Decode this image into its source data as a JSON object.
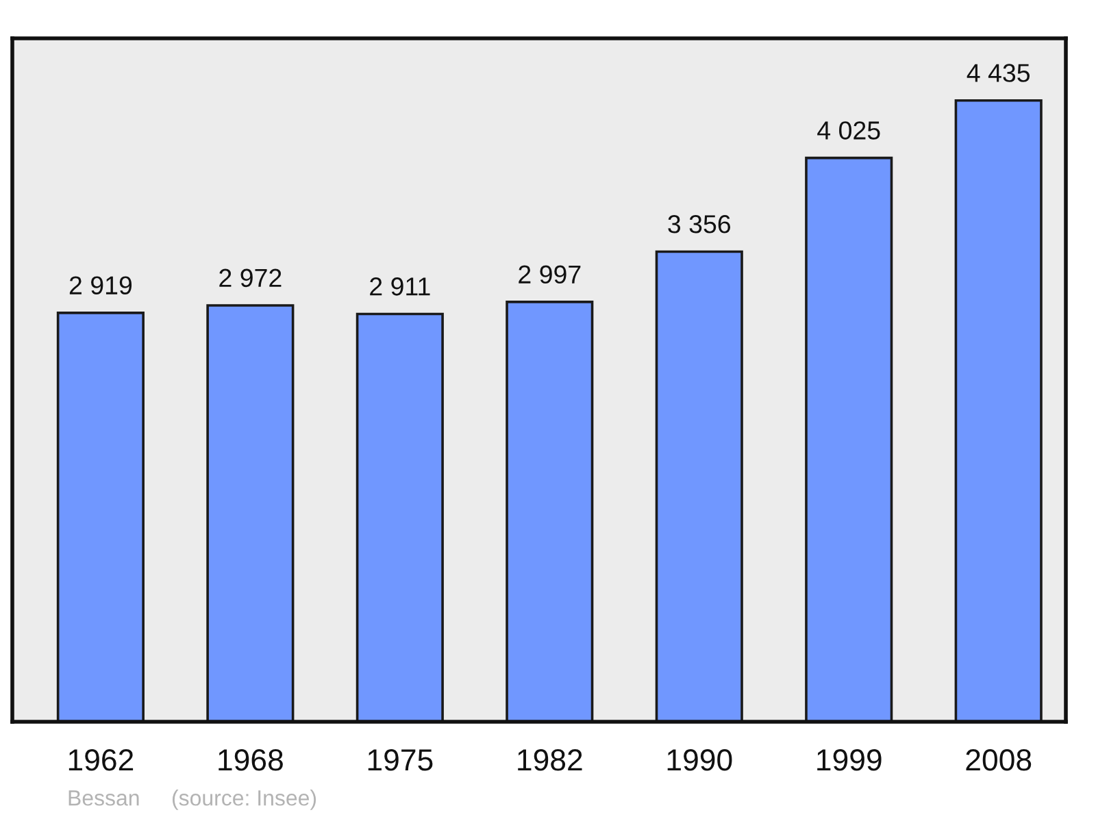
{
  "chart_data": {
    "type": "bar",
    "categories": [
      "1962",
      "1968",
      "1975",
      "1982",
      "1990",
      "1999",
      "2008"
    ],
    "values": [
      2919,
      2972,
      2911,
      2997,
      3356,
      4025,
      4435
    ],
    "value_labels": [
      "2 919",
      "2 972",
      "2 911",
      "2 997",
      "3 356",
      "4 025",
      "4 435"
    ],
    "color": "#7097ff",
    "tick_labels": "x",
    "grid": false,
    "annotations": [
      "Bessan",
      "(source: Insee)"
    ]
  }
}
